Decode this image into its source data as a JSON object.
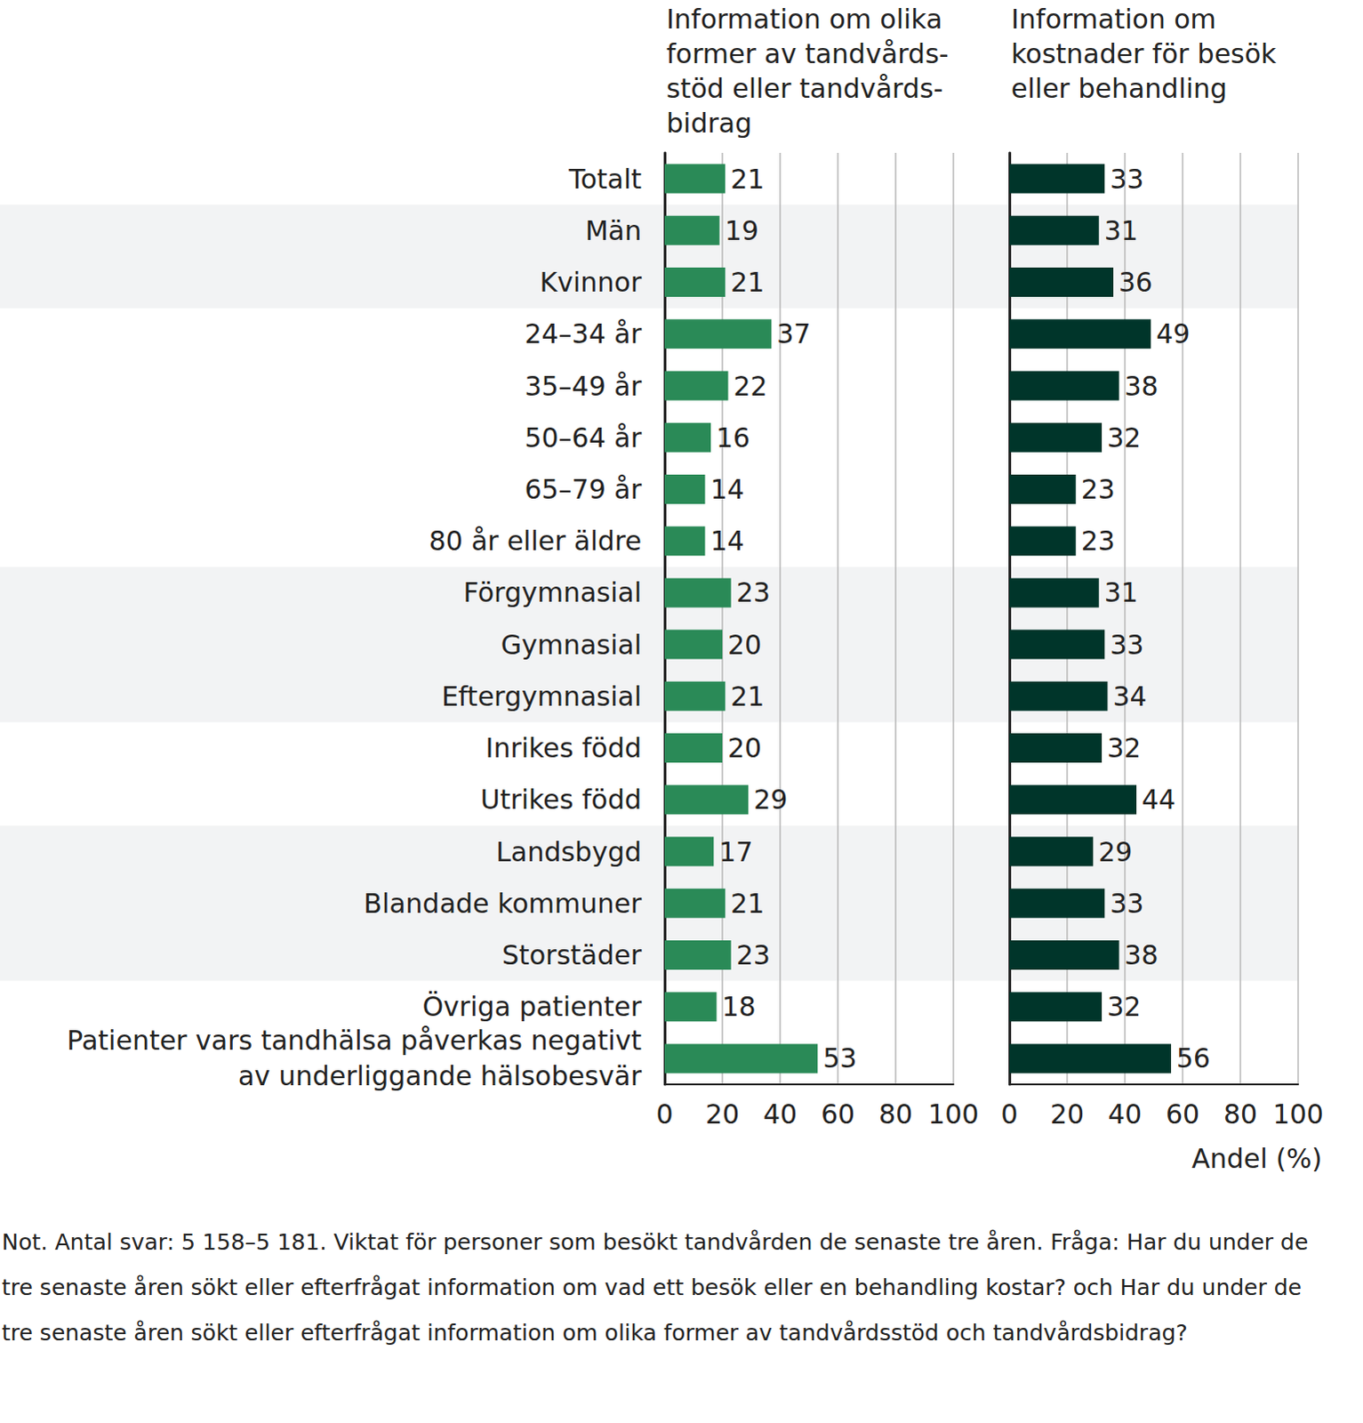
{
  "chart_data": [
    {
      "type": "bar",
      "orientation": "horizontal",
      "title": "Information om olika\nformer av tandvårds-\nstöd eller tandvårds-\nbidrag",
      "categories": [
        "Totalt",
        "Män",
        "Kvinnor",
        "24–34 år",
        "35–49 år",
        "50–64 år",
        "65–79 år",
        "80 år eller äldre",
        "Förgymnasial",
        "Gymnasial",
        "Eftergymnasial",
        "Inrikes född",
        "Utrikes född",
        "Landsbygd",
        "Blandade kommuner",
        "Storstäder",
        "Övriga patienter",
        "Patienter vars tandhälsa påverkas negativt\nav underliggande hälsobesvär"
      ],
      "values": [
        21,
        19,
        21,
        37,
        22,
        16,
        14,
        14,
        23,
        20,
        21,
        20,
        29,
        17,
        21,
        23,
        18,
        53
      ],
      "color": "#2a8a57",
      "xlim": [
        0,
        100
      ],
      "xticks": [
        0,
        20,
        40,
        60,
        80,
        100
      ],
      "grid": true,
      "data_labels": true
    },
    {
      "type": "bar",
      "orientation": "horizontal",
      "title": "Information om\nkostnader för besök\neller behandling",
      "xlabel": "Andel (%)",
      "categories": [
        "Totalt",
        "Män",
        "Kvinnor",
        "24–34 år",
        "35–49 år",
        "50–64 år",
        "65–79 år",
        "80 år eller äldre",
        "Förgymnasial",
        "Gymnasial",
        "Eftergymnasial",
        "Inrikes född",
        "Utrikes född",
        "Landsbygd",
        "Blandade kommuner",
        "Storstäder",
        "Övriga patienter",
        "Patienter vars tandhälsa påverkas negativt\nav underliggande hälsobesvär"
      ],
      "values": [
        33,
        31,
        36,
        49,
        38,
        32,
        23,
        23,
        31,
        33,
        34,
        32,
        44,
        29,
        33,
        38,
        32,
        56
      ],
      "color": "#00352a",
      "xlim": [
        0,
        100
      ],
      "xticks": [
        0,
        20,
        40,
        60,
        80,
        100
      ],
      "grid": true,
      "data_labels": true
    }
  ],
  "note": "Not. Antal svar: 5 158–5 181. Viktat för personer som besökt tandvården de senaste tre åren. Fråga: Har du under de tre senaste åren sökt eller efterfrågat information om vad ett besök eller en behandling kostar? och Har du under de tre senaste åren sökt eller efterfrågat information om olika former av tandvårdsstöd och tandvårdsbidrag?"
}
